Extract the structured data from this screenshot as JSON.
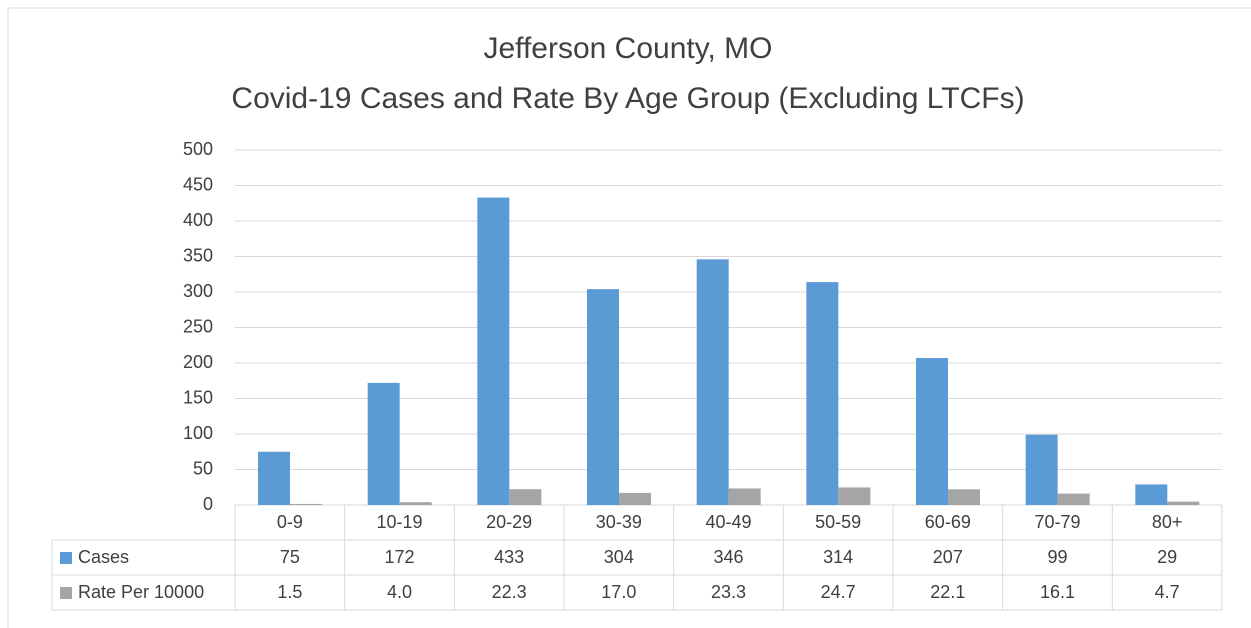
{
  "chart_data": {
    "type": "bar",
    "title": "Jefferson County, MO",
    "subtitle": "Covid-19 Cases and Rate By Age Group (Excluding LTCFs)",
    "categories": [
      "0-9",
      "10-19",
      "20-29",
      "30-39",
      "40-49",
      "50-59",
      "60-69",
      "70-79",
      "80+"
    ],
    "series": [
      {
        "name": "Cases",
        "color": "#5b9bd5",
        "values": [
          75,
          172,
          433,
          304,
          346,
          314,
          207,
          99,
          29
        ]
      },
      {
        "name": "Rate Per 10000",
        "color": "#a5a5a5",
        "values": [
          1.5,
          4.0,
          22.3,
          17.0,
          23.3,
          24.7,
          22.1,
          16.1,
          4.7
        ],
        "value_labels": [
          "1.5",
          "4.0",
          "22.3",
          "17.0",
          "23.3",
          "24.7",
          "22.1",
          "16.1",
          "4.7"
        ]
      }
    ],
    "ylim": [
      0,
      500
    ],
    "yticks": [
      0,
      50,
      100,
      150,
      200,
      250,
      300,
      350,
      400,
      450,
      500
    ],
    "grid": true
  }
}
